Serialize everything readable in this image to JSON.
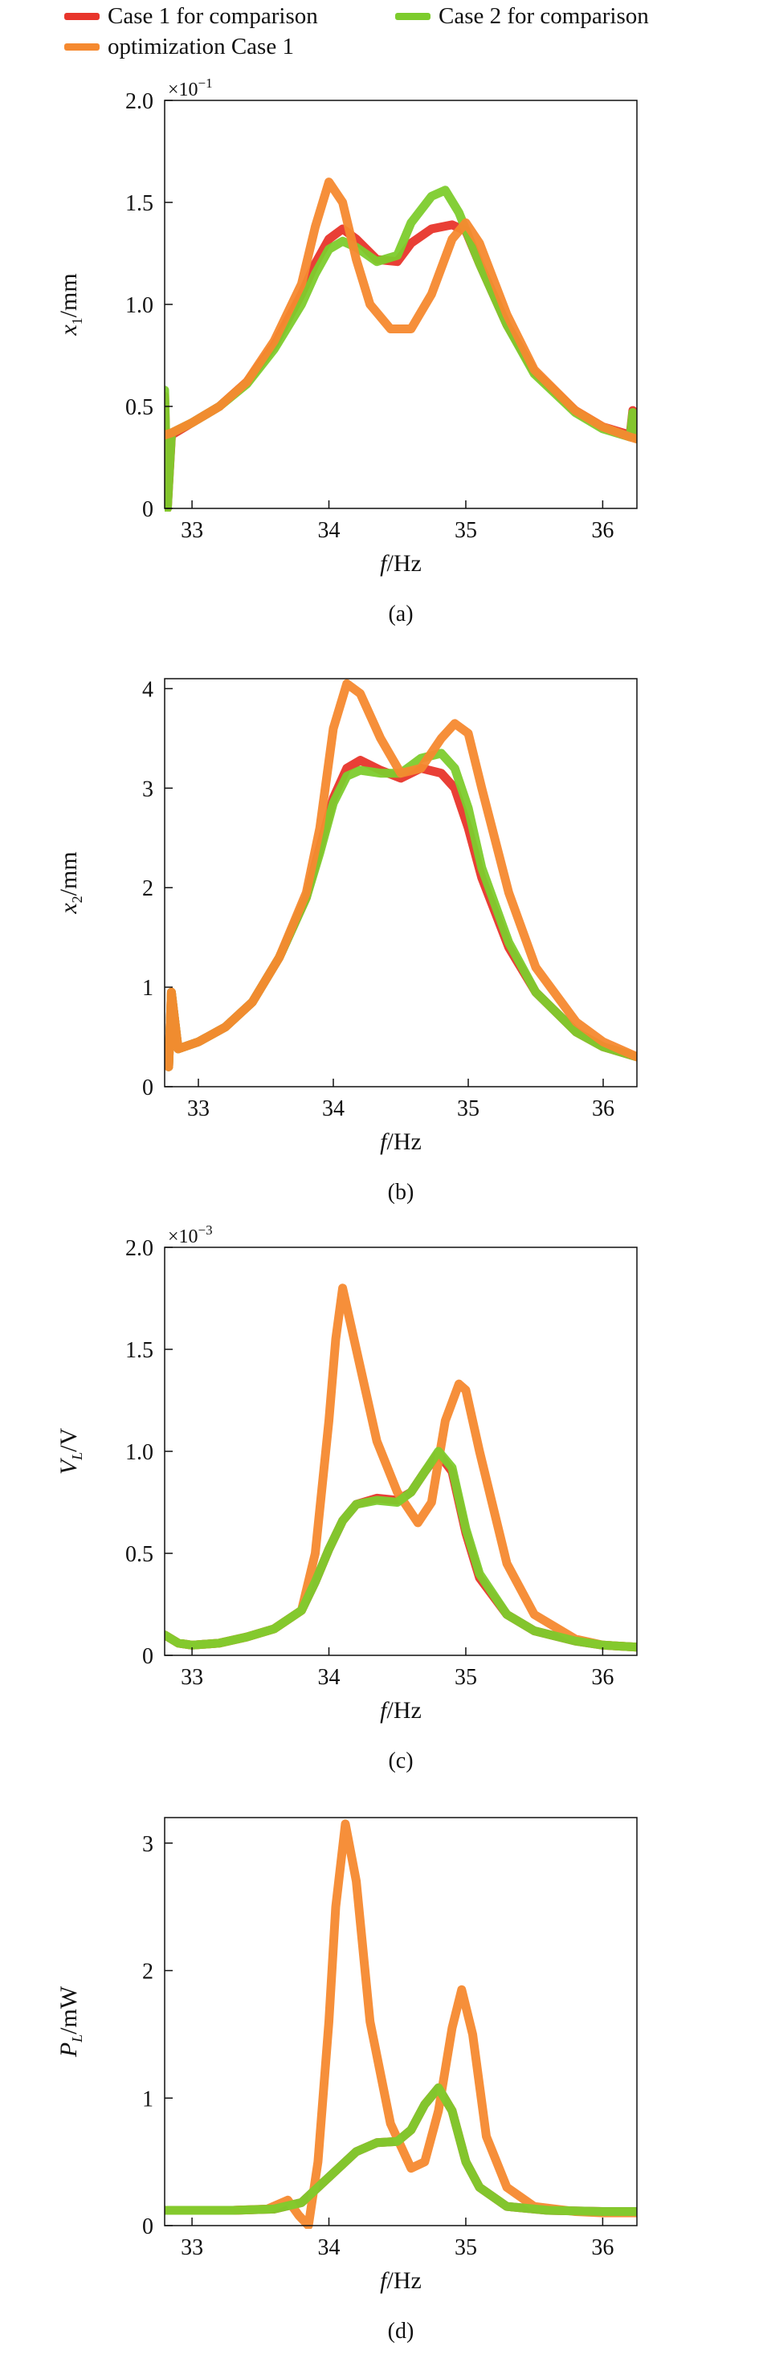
{
  "legend": [
    {
      "label": "Case 1 for comparison",
      "color": "#e8352b"
    },
    {
      "label": "Case 2 for comparison",
      "color": "#7dcc2d"
    },
    {
      "label": "optimization Case 1",
      "color": "#f5892f"
    }
  ],
  "chart_data": [
    {
      "type": "line",
      "panel_label": "(a)",
      "xlabel": "f/Hz",
      "ylabel": "x1/mm",
      "multiplier": "×10−1",
      "xlim": [
        32.8,
        36.25
      ],
      "ylim": [
        0,
        2.0
      ],
      "xticks": [
        33,
        34,
        35,
        36
      ],
      "yticks": [
        0,
        0.5,
        1.0,
        1.5,
        2.0
      ],
      "ytick_labels": [
        "0",
        "0.5",
        "1.0",
        "1.5",
        "2.0"
      ],
      "series": [
        {
          "name": "Case 1 for comparison",
          "color": "#e8352b",
          "x": [
            32.8,
            32.82,
            32.85,
            33.0,
            33.2,
            33.4,
            33.6,
            33.8,
            33.9,
            34.0,
            34.1,
            34.2,
            34.35,
            34.5,
            34.6,
            34.75,
            34.9,
            35.0,
            35.1,
            35.3,
            35.5,
            35.8,
            36.0,
            36.2,
            36.22,
            36.25
          ],
          "y": [
            0.55,
            0.0,
            0.36,
            0.42,
            0.5,
            0.62,
            0.8,
            1.05,
            1.2,
            1.32,
            1.37,
            1.32,
            1.22,
            1.21,
            1.3,
            1.37,
            1.39,
            1.36,
            1.2,
            0.9,
            0.67,
            0.48,
            0.4,
            0.36,
            0.48,
            0.35
          ]
        },
        {
          "name": "Case 2 for comparison",
          "color": "#7dcc2d",
          "x": [
            32.8,
            32.82,
            32.85,
            33.0,
            33.2,
            33.4,
            33.6,
            33.8,
            33.9,
            34.0,
            34.1,
            34.2,
            34.35,
            34.5,
            34.6,
            34.75,
            34.85,
            34.95,
            35.1,
            35.3,
            35.5,
            35.8,
            36.0,
            36.2,
            36.22,
            36.25
          ],
          "y": [
            0.58,
            0.0,
            0.37,
            0.42,
            0.5,
            0.61,
            0.78,
            1.0,
            1.15,
            1.27,
            1.31,
            1.28,
            1.21,
            1.24,
            1.4,
            1.53,
            1.56,
            1.45,
            1.2,
            0.9,
            0.66,
            0.47,
            0.39,
            0.35,
            0.47,
            0.34
          ]
        },
        {
          "name": "optimization Case 1",
          "color": "#f5892f",
          "x": [
            32.8,
            32.85,
            33.0,
            33.2,
            33.4,
            33.6,
            33.8,
            33.9,
            34.0,
            34.1,
            34.2,
            34.3,
            34.45,
            34.6,
            34.75,
            34.9,
            35.0,
            35.1,
            35.3,
            35.5,
            35.8,
            36.0,
            36.2,
            36.25
          ],
          "y": [
            0.36,
            0.37,
            0.42,
            0.5,
            0.62,
            0.82,
            1.1,
            1.38,
            1.6,
            1.5,
            1.22,
            1.0,
            0.88,
            0.88,
            1.05,
            1.32,
            1.4,
            1.3,
            0.95,
            0.68,
            0.48,
            0.4,
            0.35,
            0.34
          ]
        }
      ]
    },
    {
      "type": "line",
      "panel_label": "(b)",
      "xlabel": "f/Hz",
      "ylabel": "x2/mm",
      "multiplier": "",
      "xlim": [
        32.75,
        36.25
      ],
      "ylim": [
        0,
        4.1
      ],
      "xticks": [
        33,
        34,
        35,
        36
      ],
      "yticks": [
        0,
        1,
        2,
        3,
        4
      ],
      "ytick_labels": [
        "0",
        "1",
        "2",
        "3",
        "4"
      ],
      "series": [
        {
          "name": "Case 1 for comparison",
          "color": "#e8352b",
          "x": [
            32.78,
            32.8,
            32.85,
            33.0,
            33.2,
            33.4,
            33.6,
            33.8,
            33.9,
            34.0,
            34.1,
            34.2,
            34.35,
            34.5,
            34.65,
            34.8,
            34.9,
            35.0,
            35.1,
            35.3,
            35.5,
            35.8,
            36.0,
            36.25
          ],
          "y": [
            0.2,
            0.95,
            0.38,
            0.45,
            0.6,
            0.85,
            1.3,
            1.9,
            2.4,
            2.9,
            3.2,
            3.28,
            3.18,
            3.1,
            3.2,
            3.15,
            3.0,
            2.6,
            2.1,
            1.4,
            0.95,
            0.55,
            0.4,
            0.3
          ]
        },
        {
          "name": "Case 2 for comparison",
          "color": "#7dcc2d",
          "x": [
            32.78,
            32.8,
            32.85,
            33.0,
            33.2,
            33.4,
            33.6,
            33.8,
            33.9,
            34.0,
            34.1,
            34.2,
            34.35,
            34.5,
            34.65,
            34.8,
            34.9,
            35.0,
            35.1,
            35.3,
            35.5,
            35.8,
            36.0,
            36.25
          ],
          "y": [
            0.2,
            0.95,
            0.38,
            0.45,
            0.6,
            0.85,
            1.3,
            1.9,
            2.35,
            2.85,
            3.12,
            3.18,
            3.15,
            3.15,
            3.3,
            3.35,
            3.2,
            2.8,
            2.2,
            1.45,
            0.95,
            0.55,
            0.4,
            0.3
          ]
        },
        {
          "name": "optimization Case 1",
          "color": "#f5892f",
          "x": [
            32.78,
            32.8,
            32.85,
            33.0,
            33.2,
            33.4,
            33.6,
            33.8,
            33.9,
            34.0,
            34.1,
            34.2,
            34.35,
            34.5,
            34.65,
            34.8,
            34.9,
            35.0,
            35.1,
            35.3,
            35.5,
            35.8,
            36.0,
            36.25
          ],
          "y": [
            0.2,
            0.95,
            0.38,
            0.45,
            0.6,
            0.85,
            1.3,
            1.95,
            2.6,
            3.6,
            4.05,
            3.95,
            3.5,
            3.15,
            3.2,
            3.5,
            3.65,
            3.55,
            3.0,
            1.95,
            1.2,
            0.65,
            0.45,
            0.3
          ]
        }
      ]
    },
    {
      "type": "line",
      "panel_label": "(c)",
      "xlabel": "f/Hz",
      "ylabel": "VL/V",
      "multiplier": "×10−3",
      "xlim": [
        32.8,
        36.25
      ],
      "ylim": [
        0,
        2.0
      ],
      "xticks": [
        33,
        34,
        35,
        36
      ],
      "yticks": [
        0,
        0.5,
        1.0,
        1.5,
        2.0
      ],
      "ytick_labels": [
        "0",
        "0.5",
        "1.0",
        "1.5",
        "2.0"
      ],
      "series": [
        {
          "name": "Case 1 for comparison",
          "color": "#e8352b",
          "x": [
            32.8,
            32.9,
            33.0,
            33.2,
            33.4,
            33.6,
            33.8,
            33.9,
            34.0,
            34.1,
            34.2,
            34.35,
            34.5,
            34.6,
            34.7,
            34.8,
            34.9,
            35.0,
            35.1,
            35.3,
            35.5,
            35.8,
            36.0,
            36.25
          ],
          "y": [
            0.1,
            0.06,
            0.05,
            0.06,
            0.09,
            0.13,
            0.22,
            0.36,
            0.52,
            0.66,
            0.74,
            0.77,
            0.76,
            0.8,
            0.9,
            0.99,
            0.9,
            0.6,
            0.38,
            0.2,
            0.12,
            0.07,
            0.05,
            0.04
          ]
        },
        {
          "name": "optimization Case 1",
          "color": "#f5892f",
          "x": [
            32.8,
            32.9,
            33.0,
            33.2,
            33.4,
            33.6,
            33.8,
            33.9,
            34.0,
            34.05,
            34.1,
            34.2,
            34.35,
            34.5,
            34.65,
            34.75,
            34.85,
            34.95,
            35.0,
            35.1,
            35.3,
            35.5,
            35.8,
            36.0,
            36.25
          ],
          "y": [
            0.1,
            0.06,
            0.05,
            0.06,
            0.09,
            0.13,
            0.22,
            0.5,
            1.15,
            1.55,
            1.8,
            1.5,
            1.05,
            0.8,
            0.65,
            0.75,
            1.15,
            1.33,
            1.3,
            1.0,
            0.45,
            0.2,
            0.08,
            0.05,
            0.04
          ]
        },
        {
          "name": "Case 2 for comparison",
          "color": "#7dcc2d",
          "x": [
            32.8,
            32.9,
            33.0,
            33.2,
            33.4,
            33.6,
            33.8,
            33.9,
            34.0,
            34.1,
            34.2,
            34.35,
            34.5,
            34.6,
            34.7,
            34.8,
            34.9,
            35.0,
            35.1,
            35.3,
            35.5,
            35.8,
            36.0,
            36.25
          ],
          "y": [
            0.1,
            0.06,
            0.05,
            0.06,
            0.09,
            0.13,
            0.22,
            0.36,
            0.52,
            0.66,
            0.74,
            0.76,
            0.75,
            0.8,
            0.9,
            1.0,
            0.92,
            0.62,
            0.4,
            0.2,
            0.12,
            0.07,
            0.05,
            0.04
          ]
        }
      ]
    },
    {
      "type": "line",
      "panel_label": "(d)",
      "xlabel": "f/Hz",
      "ylabel": "PL/mW",
      "multiplier": "",
      "xlim": [
        32.8,
        36.25
      ],
      "ylim": [
        0,
        3.2
      ],
      "xticks": [
        33,
        34,
        35,
        36
      ],
      "yticks": [
        0,
        1,
        2,
        3
      ],
      "ytick_labels": [
        "0",
        "1",
        "2",
        "3"
      ],
      "series": [
        {
          "name": "Case 1 for comparison",
          "color": "#e8352b",
          "x": [
            32.8,
            33.0,
            33.3,
            33.6,
            33.8,
            34.0,
            34.2,
            34.35,
            34.5,
            34.6,
            34.7,
            34.8,
            34.9,
            35.0,
            35.1,
            35.3,
            35.6,
            36.0,
            36.25
          ],
          "y": [
            0.12,
            0.12,
            0.12,
            0.13,
            0.18,
            0.38,
            0.58,
            0.65,
            0.66,
            0.75,
            0.95,
            1.08,
            0.9,
            0.5,
            0.3,
            0.15,
            0.12,
            0.11,
            0.11
          ]
        },
        {
          "name": "optimization Case 1",
          "color": "#f5892f",
          "x": [
            32.8,
            33.0,
            33.3,
            33.55,
            33.7,
            33.78,
            33.85,
            33.92,
            34.0,
            34.05,
            34.12,
            34.2,
            34.3,
            34.45,
            34.6,
            34.7,
            34.8,
            34.9,
            34.97,
            35.05,
            35.15,
            35.3,
            35.5,
            35.8,
            36.0,
            36.25
          ],
          "y": [
            0.12,
            0.12,
            0.12,
            0.13,
            0.2,
            0.08,
            0.0,
            0.5,
            1.6,
            2.5,
            3.15,
            2.7,
            1.6,
            0.8,
            0.45,
            0.5,
            0.9,
            1.55,
            1.85,
            1.5,
            0.7,
            0.3,
            0.15,
            0.11,
            0.1,
            0.1
          ]
        },
        {
          "name": "Case 2 for comparison",
          "color": "#7dcc2d",
          "x": [
            32.8,
            33.0,
            33.3,
            33.6,
            33.8,
            34.0,
            34.2,
            34.35,
            34.5,
            34.6,
            34.7,
            34.8,
            34.9,
            35.0,
            35.1,
            35.3,
            35.6,
            36.0,
            36.25
          ],
          "y": [
            0.12,
            0.12,
            0.12,
            0.13,
            0.18,
            0.38,
            0.58,
            0.65,
            0.66,
            0.75,
            0.95,
            1.08,
            0.9,
            0.5,
            0.3,
            0.15,
            0.12,
            0.11,
            0.11
          ]
        }
      ]
    }
  ]
}
